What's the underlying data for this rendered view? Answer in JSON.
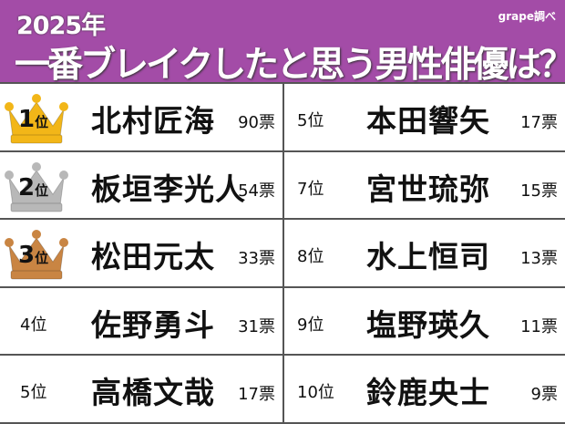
{
  "header": {
    "year": "2025年",
    "title": "一番ブレイクしたと思う男性俳優は？",
    "source": "grape調べ"
  },
  "colors": {
    "header": "#a34ca7",
    "gold": "#f2b618",
    "silver": "#b8b8b8",
    "bronze": "#c98543"
  },
  "left": [
    {
      "rank": "1",
      "rank_suffix": "位",
      "name": "北村匠海",
      "votes": "90票",
      "crown": "gold"
    },
    {
      "rank": "2",
      "rank_suffix": "位",
      "name": "板垣李光人",
      "votes": "54票",
      "crown": "silver"
    },
    {
      "rank": "3",
      "rank_suffix": "位",
      "name": "松田元太",
      "votes": "33票",
      "crown": "bronze"
    },
    {
      "rank": "4位",
      "name": "佐野勇斗",
      "votes": "31票"
    },
    {
      "rank": "5位",
      "name": "高橋文哉",
      "votes": "17票"
    }
  ],
  "right": [
    {
      "rank": "5位",
      "name": "本田響矢",
      "votes": "17票"
    },
    {
      "rank": "7位",
      "name": "宮世琉弥",
      "votes": "15票"
    },
    {
      "rank": "8位",
      "name": "水上恒司",
      "votes": "13票"
    },
    {
      "rank": "9位",
      "name": "塩野瑛久",
      "votes": "11票"
    },
    {
      "rank": "10位",
      "name": "鈴鹿央士",
      "votes": "9票"
    }
  ]
}
